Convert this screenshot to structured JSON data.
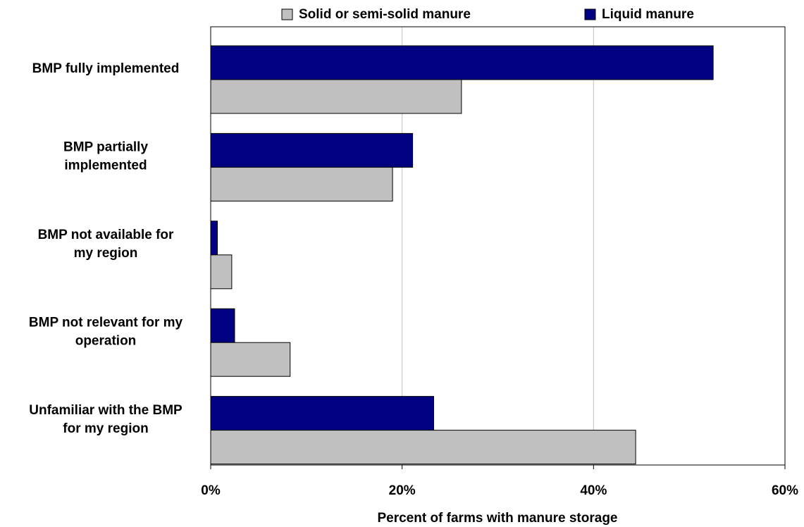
{
  "chart_data": {
    "type": "hbar",
    "xlabel": "Percent of farms with manure storage",
    "categories": [
      "BMP fully implemented",
      "BMP partially implemented",
      "BMP not available for my region",
      "BMP not relevant for my operation",
      "Unfamiliar with the BMP for my region"
    ],
    "series": [
      {
        "name": "Solid or semi-solid manure",
        "color": "#c0c0c0",
        "values": [
          26.2,
          19.0,
          2.2,
          8.3,
          44.4
        ]
      },
      {
        "name": "Liquid manure",
        "color": "#000080",
        "values": [
          52.5,
          21.1,
          0.7,
          2.5,
          23.3
        ]
      }
    ],
    "xlim": [
      0,
      60
    ],
    "xticks": [
      {
        "value": 0,
        "label": "0%"
      },
      {
        "value": 20,
        "label": "20%"
      },
      {
        "value": 40,
        "label": "40%"
      },
      {
        "value": 60,
        "label": "60%"
      }
    ],
    "grid": true,
    "legend": "top"
  }
}
